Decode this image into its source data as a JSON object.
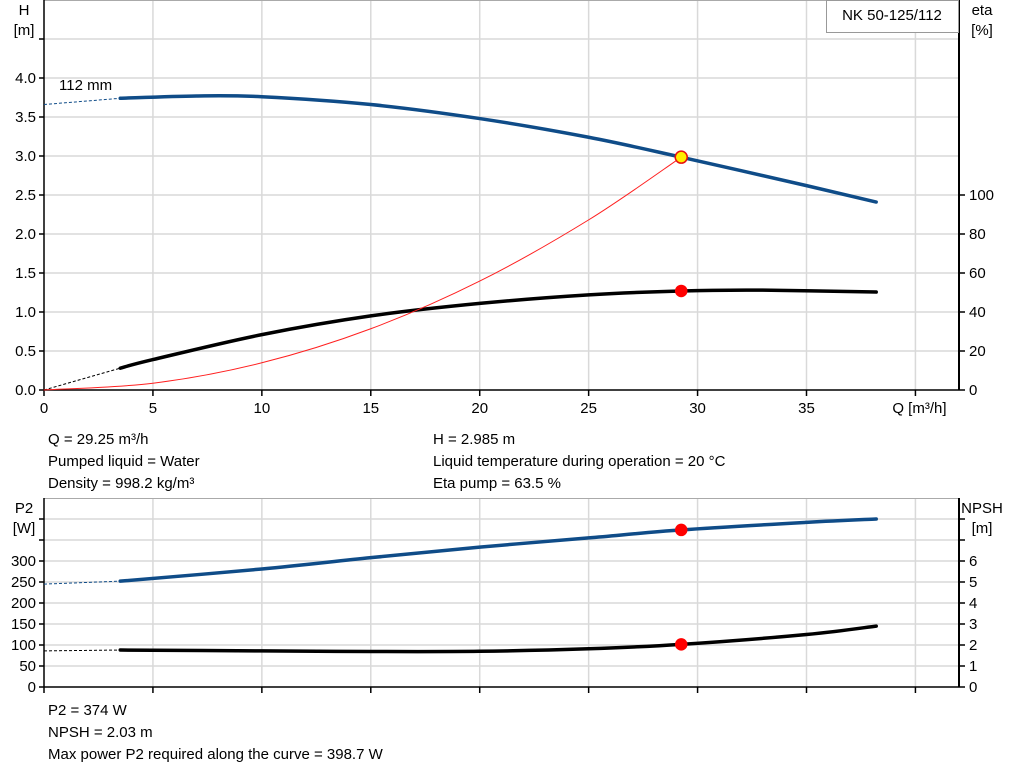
{
  "chart_data": [
    {
      "type": "line",
      "legend_box": "NK 50-125/112",
      "left_axis": {
        "label": "H",
        "unit": "[m]",
        "ylim": [
          0,
          5
        ],
        "ticks": [
          "0.0",
          "0.5",
          "1.0",
          "1.5",
          "2.0",
          "2.5",
          "3.0",
          "3.5",
          "4.0"
        ]
      },
      "right_axis": {
        "label": "eta",
        "unit": "[%]",
        "ylim": [
          0,
          250
        ],
        "ticks": [
          "0",
          "20",
          "40",
          "60",
          "80",
          "100"
        ]
      },
      "x_axis": {
        "label": "Q [m³/h]",
        "xlim": [
          0,
          42
        ],
        "ticks": [
          "0",
          "5",
          "10",
          "15",
          "20",
          "25",
          "30",
          "35"
        ]
      },
      "grid": true,
      "curve_label": "112 mm",
      "series": [
        {
          "key": "head",
          "axis": "left",
          "color": "#0f4c88",
          "extrapolated": [
            [
              0,
              3.66
            ],
            [
              3.5,
              3.74
            ]
          ],
          "points": [
            [
              3.5,
              3.74
            ],
            [
              7,
              3.77
            ],
            [
              10,
              3.76
            ],
            [
              15,
              3.66
            ],
            [
              20,
              3.48
            ],
            [
              25,
              3.24
            ],
            [
              29.25,
              2.985
            ],
            [
              35,
              2.62
            ],
            [
              38.2,
              2.41
            ]
          ]
        },
        {
          "key": "eta",
          "axis": "right",
          "color": "#000000",
          "extrapolated": [
            [
              0,
              0
            ],
            [
              3.5,
              14
            ]
          ],
          "points": [
            [
              3.5,
              14
            ],
            [
              5,
              19.5
            ],
            [
              10,
              35.5
            ],
            [
              15,
              47.5
            ],
            [
              20,
              55.5
            ],
            [
              25,
              61
            ],
            [
              29.25,
              63.5
            ],
            [
              33,
              64
            ],
            [
              38.2,
              62.8
            ]
          ]
        },
        {
          "key": "system",
          "axis": "left",
          "color": "#ff2020",
          "points": [
            [
              0,
              0
            ],
            [
              5,
              0.087
            ],
            [
              10,
              0.349
            ],
            [
              15,
              0.785
            ],
            [
              20,
              1.396
            ],
            [
              25,
              2.181
            ],
            [
              29.25,
              2.985
            ]
          ]
        }
      ],
      "duty_points": [
        {
          "series": "head",
          "x": 29.25,
          "y": 2.985,
          "fill": "#ffee00",
          "stroke": "#e81010"
        },
        {
          "series": "eta",
          "x": 29.25,
          "y": 63.5,
          "fill": "#ff0000",
          "stroke": "#ff0000"
        }
      ]
    },
    {
      "type": "line",
      "left_axis": {
        "label": "P2",
        "unit": "[W]",
        "ylim": [
          0,
          450
        ],
        "ticks": [
          "0",
          "50",
          "100",
          "150",
          "200",
          "250",
          "300"
        ]
      },
      "right_axis": {
        "label": "NPSH",
        "unit": "[m]",
        "ylim": [
          0,
          9
        ],
        "ticks": [
          "0",
          "1",
          "2",
          "3",
          "4",
          "5",
          "6"
        ]
      },
      "x_axis": {
        "xlim": [
          0,
          42
        ]
      },
      "grid": true,
      "series": [
        {
          "key": "p2",
          "axis": "left",
          "color": "#0f4c88",
          "extrapolated": [
            [
              0,
              245
            ],
            [
              3.5,
              252
            ]
          ],
          "points": [
            [
              3.5,
              252
            ],
            [
              10,
              281
            ],
            [
              15,
              308
            ],
            [
              20,
              333
            ],
            [
              25,
              355
            ],
            [
              29.25,
              374
            ],
            [
              35,
              392
            ],
            [
              38.2,
              400
            ]
          ]
        },
        {
          "key": "npsh",
          "axis": "right",
          "color": "#000000",
          "extrapolated": [
            [
              0,
              1.72
            ],
            [
              3.5,
              1.76
            ]
          ],
          "points": [
            [
              3.5,
              1.76
            ],
            [
              10,
              1.72
            ],
            [
              15,
              1.69
            ],
            [
              20,
              1.7
            ],
            [
              25,
              1.82
            ],
            [
              29.25,
              2.03
            ],
            [
              35,
              2.5
            ],
            [
              38.2,
              2.9
            ]
          ]
        }
      ],
      "duty_points": [
        {
          "series": "p2",
          "x": 29.25,
          "y": 374,
          "fill": "#ff0000",
          "stroke": "#ff0000"
        },
        {
          "series": "npsh",
          "x": 29.25,
          "y": 2.03,
          "fill": "#ff0000",
          "stroke": "#ff0000"
        }
      ]
    }
  ],
  "info_top": {
    "left": [
      "Q = 29.25 m³/h",
      "Pumped liquid = Water",
      "Density = 998.2 kg/m³"
    ],
    "right": [
      "H = 2.985 m",
      "Liquid temperature during operation = 20 °C",
      "Eta pump = 63.5 %"
    ]
  },
  "info_bottom": [
    "P2 = 374 W",
    "NPSH = 2.03 m",
    "Max power P2 required along the curve = 398.7 W"
  ]
}
